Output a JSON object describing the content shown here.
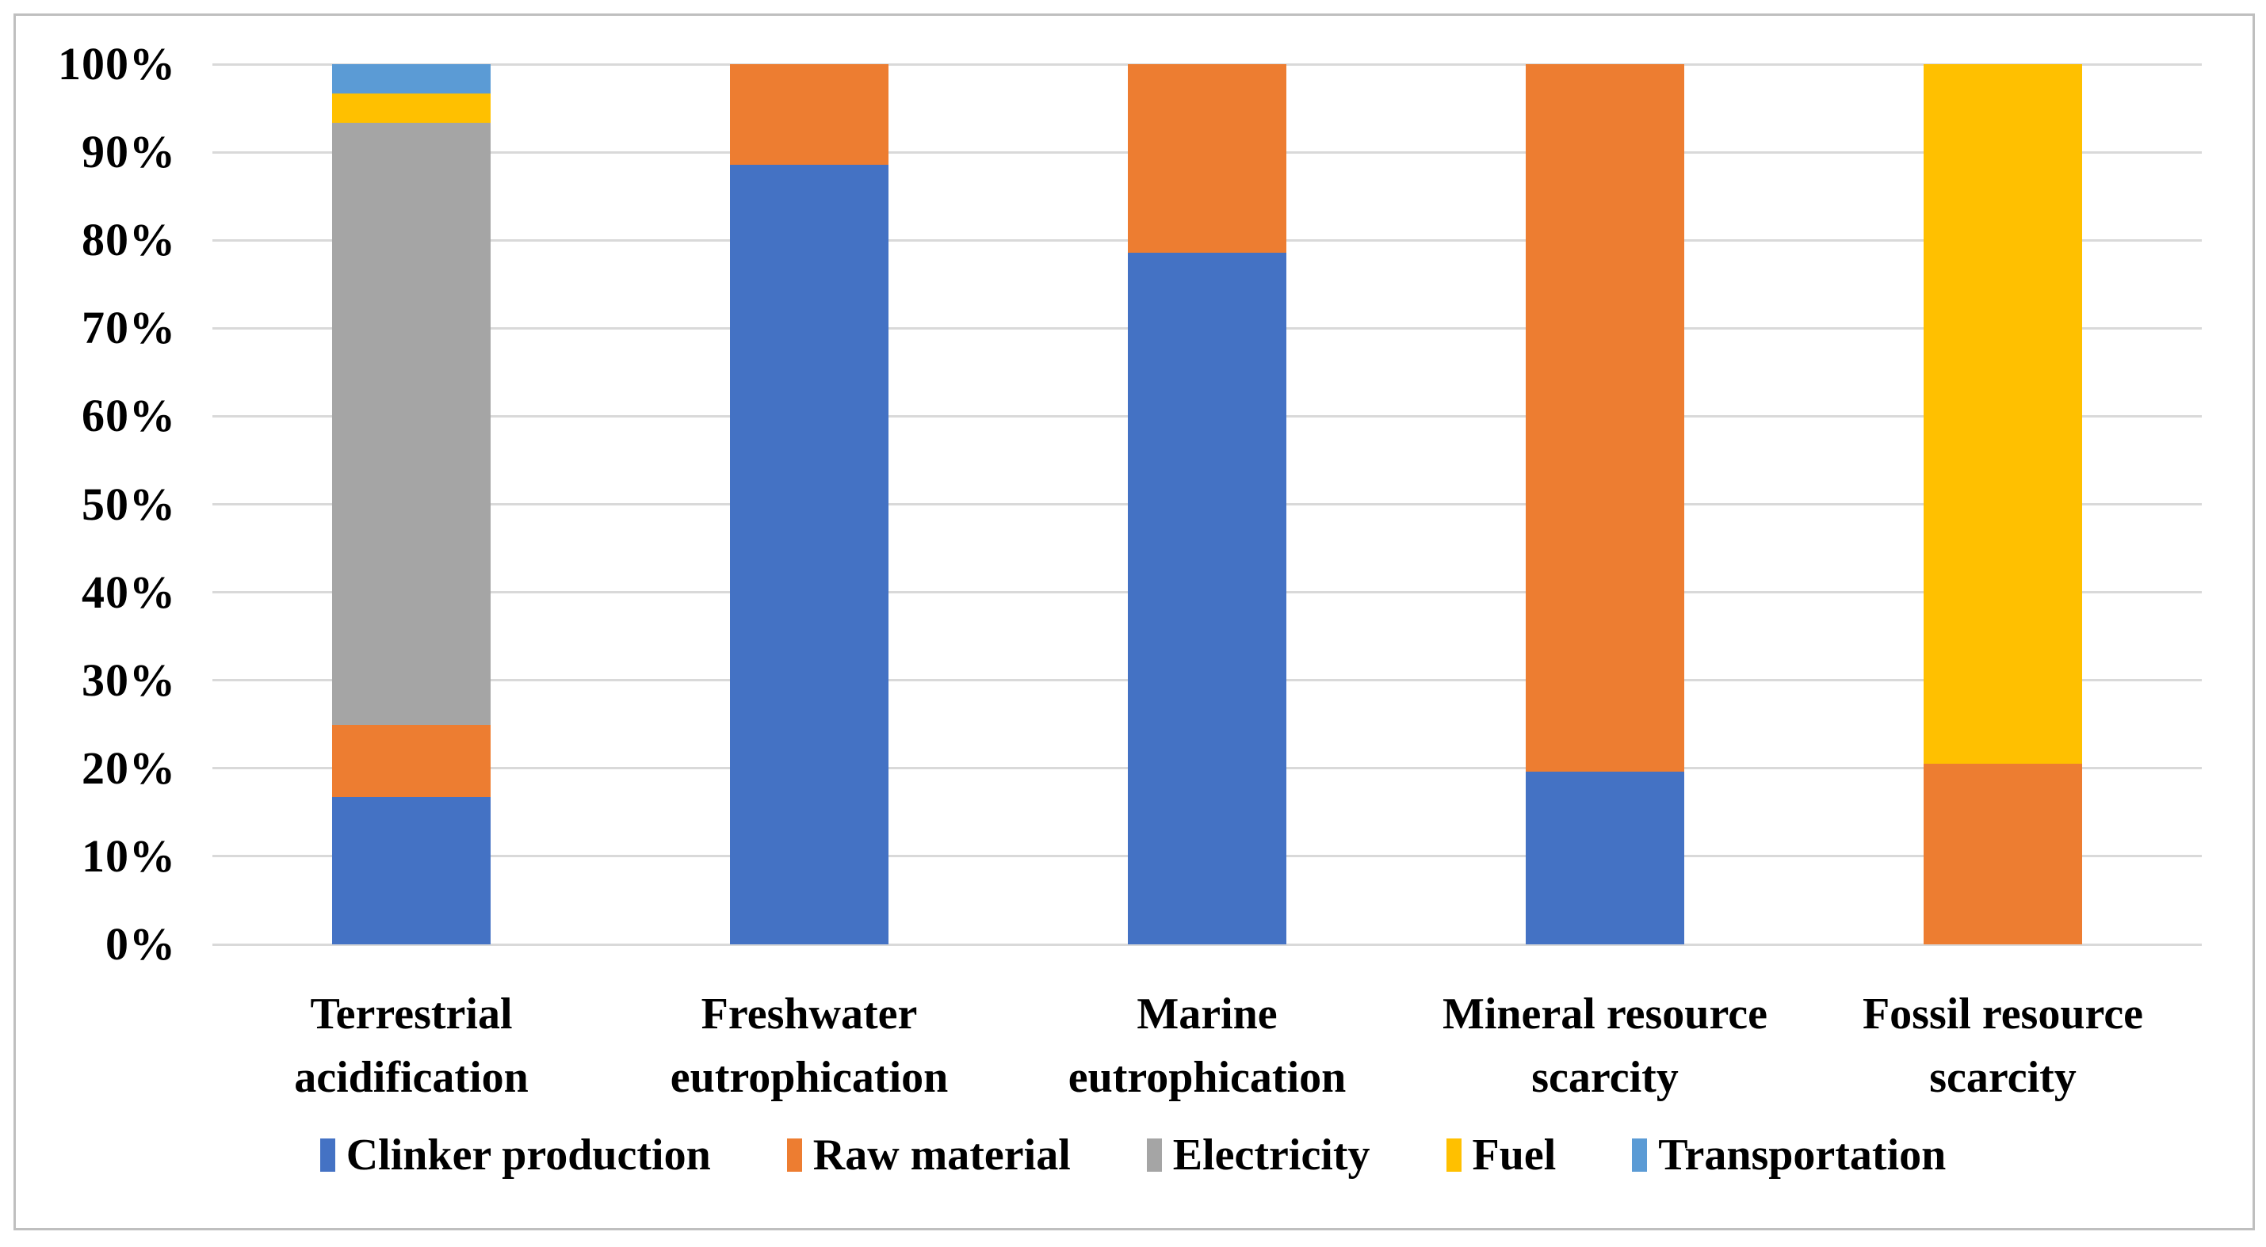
{
  "chart_data": {
    "type": "bar",
    "variant": "stacked-100-percent",
    "title": "",
    "xlabel": "",
    "ylabel": "",
    "units": "%",
    "grid": true,
    "legend_position": "bottom",
    "categories": [
      "Terrestrial acidification",
      "Freshwater eutrophication",
      "Marine eutrophication",
      "Mineral resource scarcity",
      "Fossil resource scarcity"
    ],
    "categories_multiline": [
      [
        "Terrestrial",
        "acidification"
      ],
      [
        "Freshwater",
        "eutrophication"
      ],
      [
        "Marine",
        "eutrophication"
      ],
      [
        "Mineral resource",
        "scarcity"
      ],
      [
        "Fossil resource",
        "scarcity"
      ]
    ],
    "series": [
      {
        "name": "Clinker production",
        "color": "#4472C4",
        "values": [
          16.7,
          88.6,
          78.6,
          19.6,
          0
        ]
      },
      {
        "name": "Raw material",
        "color": "#ED7D31",
        "values": [
          8.2,
          11.4,
          21.4,
          80.4,
          20.5
        ]
      },
      {
        "name": "Electricity",
        "color": "#A5A5A5",
        "values": [
          68.4,
          0,
          0,
          0,
          0
        ]
      },
      {
        "name": "Fuel",
        "color": "#FFC000",
        "values": [
          3.4,
          0,
          0,
          0,
          79.5
        ]
      },
      {
        "name": "Transportation",
        "color": "#5B9BD5",
        "values": [
          3.3,
          0,
          0,
          0,
          0
        ]
      }
    ],
    "y_axis": {
      "min": 0,
      "max": 100,
      "step": 10,
      "tick_labels": [
        "100%",
        "90%",
        "80%",
        "70%",
        "60%",
        "50%",
        "40%",
        "30%",
        "20%",
        "10%",
        "0%"
      ]
    },
    "colors": {
      "gridline": "#D9D9D9",
      "frame_border": "#BFBFBF",
      "background": "#FFFFFF",
      "text": "#000000"
    }
  }
}
